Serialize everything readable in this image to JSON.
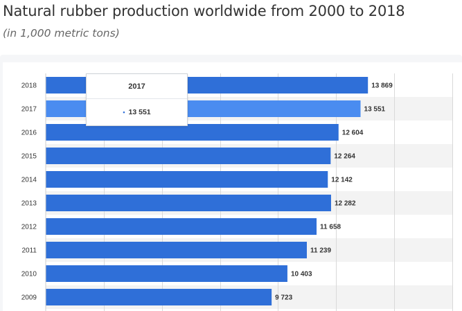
{
  "header": {
    "title": "Natural rubber production worldwide from 2000 to 2018",
    "subtitle": "(in 1,000 metric tons)"
  },
  "tooltip": {
    "year": "2017",
    "value": "13 551",
    "bullet": "•"
  },
  "colors": {
    "bar": "#2f6fd8",
    "bar_highlight": "#4a8cf0",
    "stripe": "#f3f3f3",
    "grid": "#d9d9d9",
    "label": "#333333"
  },
  "chart_data": {
    "type": "bar",
    "orientation": "horizontal",
    "categories": [
      "2018",
      "2017",
      "2016",
      "2015",
      "2014",
      "2013",
      "2012",
      "2011",
      "2010",
      "2009"
    ],
    "values": [
      13869,
      13551,
      12604,
      12264,
      12142,
      12282,
      11658,
      11239,
      10403,
      9723
    ],
    "value_labels": [
      "13 869",
      "13 551",
      "12 604",
      "12 264",
      "12 142",
      "12 282",
      "11 658",
      "11 239",
      "10 403",
      "9 723"
    ],
    "highlighted_category": "2017",
    "xlim": [
      0,
      17500
    ],
    "grid": true,
    "title": "Natural rubber production worldwide from 2000 to 2018",
    "ylabel": "",
    "xlabel": ""
  }
}
